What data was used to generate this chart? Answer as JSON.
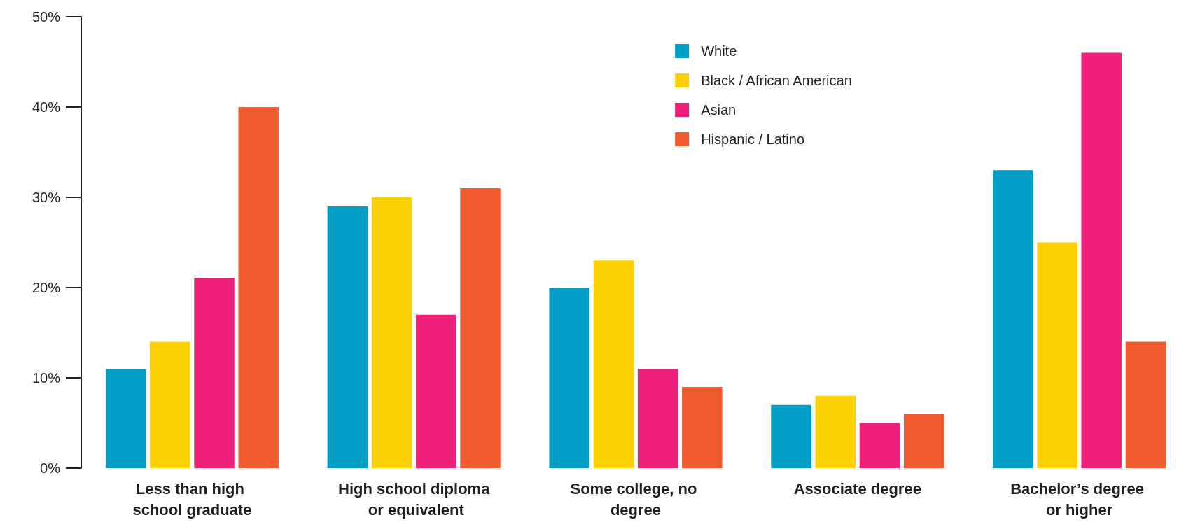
{
  "chart_data": {
    "type": "bar",
    "categories": [
      "Less than high school graduate",
      "High school diploma or equivalent",
      "Some college, no degree",
      "Associate degree",
      "Bachelor’s degree or higher"
    ],
    "series": [
      {
        "name": "White",
        "color": "#009dc4",
        "values": [
          11,
          29,
          20,
          7,
          33
        ]
      },
      {
        "name": "Black / African American",
        "color": "#fcd205",
        "values": [
          14,
          30,
          23,
          8,
          25
        ]
      },
      {
        "name": "Asian",
        "color": "#ee207a",
        "values": [
          21,
          17,
          11,
          5,
          46
        ]
      },
      {
        "name": "Hispanic / Latino",
        "color": "#f15a2c",
        "values": [
          40,
          31,
          9,
          6,
          14
        ]
      }
    ],
    "ylim": [
      0,
      50
    ],
    "yticks": [
      {
        "value": 0,
        "label": "0%"
      },
      {
        "value": 10,
        "label": "10%"
      },
      {
        "value": 20,
        "label": "20%"
      },
      {
        "value": 30,
        "label": "30%"
      },
      {
        "value": 40,
        "label": "40%"
      },
      {
        "value": 50,
        "label": "50%"
      }
    ],
    "grid": false,
    "legend": "top right"
  }
}
